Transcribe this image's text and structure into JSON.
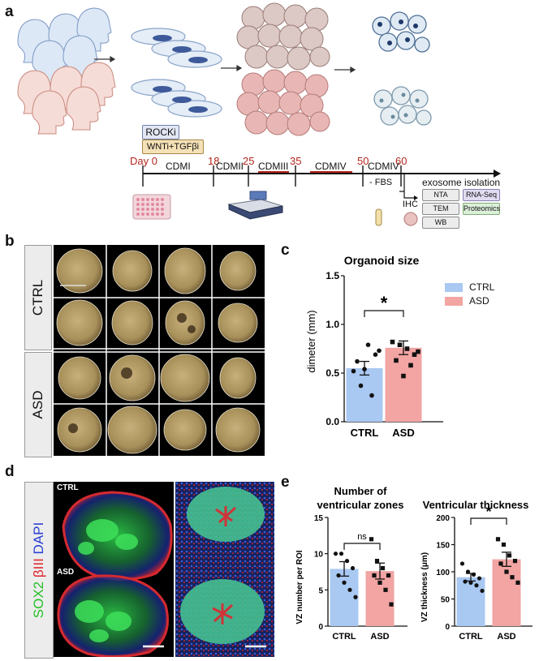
{
  "panels": {
    "a": "a",
    "b": "b",
    "c": "c",
    "d": "d",
    "e": "e"
  },
  "panel_a": {
    "rocki_label": "ROCKi",
    "wnti_label": "WNTi+TGFβi",
    "timeline_days": [
      "Day 0",
      "18",
      "25",
      "35",
      "50",
      "60"
    ],
    "stage_labels": [
      "CDMI",
      "CDMII",
      "CDMIII",
      "CDMIV",
      "CDMIV"
    ],
    "fbs_label": "- FBS",
    "exosome_label": "exosome isolation",
    "ihc_label": "IHC",
    "assays": [
      "NTA",
      "RNA-Seq",
      "TEM",
      "Proteomics",
      "WB"
    ]
  },
  "panel_b": {
    "groups": [
      "CTRL",
      "ASD"
    ]
  },
  "panel_d": {
    "stain_labels": [
      {
        "text": "SOX2",
        "color": "#25c025"
      },
      {
        "text": "βIII",
        "color": "#e0252b"
      },
      {
        "text": "DAPI",
        "color": "#2a3fd6"
      }
    ],
    "image_labels": [
      "CTRL",
      "ASD"
    ]
  },
  "colors": {
    "ctrl": "#a9c8f2",
    "asd": "#f2a5a3",
    "accent_red": "#d94a45",
    "timeline_red": "#b3261e"
  },
  "chart_data": [
    {
      "type": "bar",
      "title": "Organoid size",
      "xlabel": "",
      "ylabel": "dimeter (mm)",
      "ylim": [
        0,
        1.5
      ],
      "yticks": [
        "0.0",
        "0.5",
        "1.0",
        "1.5"
      ],
      "categories": [
        "CTRL",
        "ASD"
      ],
      "values": [
        0.55,
        0.76
      ],
      "errors": [
        0.07,
        0.07
      ],
      "points": [
        [
          0.52,
          0.37,
          0.79,
          0.69,
          0.62,
          0.54,
          0.27,
          0.73
        ],
        [
          0.82,
          0.79,
          0.75,
          0.69,
          0.63,
          0.47,
          0.58,
          0.72
        ]
      ],
      "legend": [
        "CTRL",
        "ASD"
      ],
      "legend_placement": "top-right",
      "significance": "*"
    },
    {
      "type": "bar",
      "title": "Number of ventricular zones",
      "title_lines": [
        "Number of",
        "ventricular zones"
      ],
      "xlabel": "",
      "ylabel": "VZ number per ROI",
      "ylim": [
        0,
        15
      ],
      "yticks": [
        "0",
        "5",
        "10",
        "15"
      ],
      "categories": [
        "CTRL",
        "ASD"
      ],
      "values": [
        7.9,
        7.6
      ],
      "errors": [
        1.0,
        1.1
      ],
      "points": [
        [
          10,
          10,
          9,
          8,
          7,
          6,
          5,
          4
        ],
        [
          12,
          9,
          8,
          7,
          7,
          6,
          5,
          3
        ]
      ],
      "significance": "ns"
    },
    {
      "type": "bar",
      "title": "Ventricular thickness",
      "xlabel": "",
      "ylabel": "VZ thickness (μm)",
      "ylim": [
        0,
        200
      ],
      "yticks": [
        "0",
        "50",
        "100",
        "150",
        "200"
      ],
      "categories": [
        "CTRL",
        "ASD"
      ],
      "values": [
        90,
        123
      ],
      "errors": [
        7,
        13
      ],
      "points": [
        [
          115,
          100,
          95,
          88,
          82,
          80,
          75,
          65
        ],
        [
          160,
          150,
          130,
          120,
          115,
          100,
          90,
          80
        ]
      ],
      "significance": "*"
    }
  ]
}
